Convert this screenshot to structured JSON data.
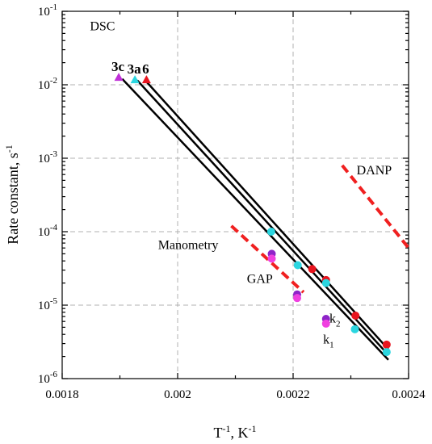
{
  "chart_data": {
    "type": "scatter",
    "xlabel": "T",
    "xlabel_sup": "-1",
    "xlabel_unit": ", K",
    "xlabel_unit_sup": "-1",
    "ylabel": "Rate constant, s",
    "ylabel_sup": "-1",
    "xlim": [
      0.0018,
      0.0024
    ],
    "ylim": [
      1e-06,
      0.1
    ],
    "yscale": "log",
    "grid": true,
    "x_ticks": [
      {
        "v": 0.0018,
        "label": "0.0018"
      },
      {
        "v": 0.002,
        "label": "0.002"
      },
      {
        "v": 0.0022,
        "label": "0.0022"
      },
      {
        "v": 0.0024,
        "label": "0.0024"
      }
    ],
    "y_ticks": [
      {
        "v": 1e-06,
        "base": "10",
        "exp": "-6"
      },
      {
        "v": 1e-05,
        "base": "10",
        "exp": "-5"
      },
      {
        "v": 0.0001,
        "base": "10",
        "exp": "-4"
      },
      {
        "v": 0.001,
        "base": "10",
        "exp": "-3"
      },
      {
        "v": 0.01,
        "base": "10",
        "exp": "-2"
      },
      {
        "v": 0.1,
        "base": "10",
        "exp": "-1"
      }
    ],
    "point_series": [
      {
        "color": "#e8141e",
        "points": [
          [
            0.002233,
            3.1e-05
          ],
          [
            0.002257,
            2.2e-05
          ],
          [
            0.002308,
            7.2e-06
          ],
          [
            0.002362,
            2.9e-06
          ]
        ]
      },
      {
        "color": "#2bd6e0",
        "points": [
          [
            0.002162,
            0.0001
          ],
          [
            0.002208,
            3.5e-05
          ],
          [
            0.002257,
            2e-05
          ],
          [
            0.002307,
            4.7e-06
          ],
          [
            0.002362,
            2.3e-06
          ]
        ]
      },
      {
        "color": "#8e24c8",
        "points": [
          [
            0.002163,
            5e-05
          ],
          [
            0.002207,
            1.4e-05
          ],
          [
            0.002257,
            6.5e-06
          ]
        ]
      },
      {
        "color": "#f040e0",
        "points": [
          [
            0.002163,
            4.3e-05
          ],
          [
            0.002207,
            1.25e-05
          ],
          [
            0.002257,
            5.6e-06
          ]
        ]
      }
    ],
    "dsc_markers": [
      {
        "label": "3c",
        "color": "#c030d8",
        "x": 0.001898,
        "y": 0.0125
      },
      {
        "label": "3a",
        "color": "#2bd6e0",
        "x": 0.001926,
        "y": 0.0116
      },
      {
        "label": "6",
        "color": "#e8141e",
        "x": 0.001946,
        "y": 0.0116
      }
    ],
    "fit_lines": [
      {
        "color": "#000000",
        "from": [
          0.001904,
          0.012
        ],
        "to": [
          0.002365,
          1.8e-06
        ]
      },
      {
        "color": "#000000",
        "from": [
          0.00193,
          0.0115
        ],
        "to": [
          0.002365,
          2.1e-06
        ]
      },
      {
        "color": "#000000",
        "from": [
          0.001946,
          0.011
        ],
        "to": [
          0.002365,
          2.5e-06
        ]
      }
    ],
    "dashed_lines": [
      {
        "color": "#f02020",
        "from": [
          0.002093,
          0.00012
        ],
        "to": [
          0.002218,
          1.5e-05
        ]
      },
      {
        "color": "#f02020",
        "from": [
          0.002285,
          0.0008
        ],
        "to": [
          0.0024,
          6e-05
        ]
      }
    ],
    "annotations": [
      {
        "text": "DSC",
        "x": 0.001848,
        "y": 0.055
      },
      {
        "text": "DANP",
        "x": 0.00231,
        "y": 0.0006
      },
      {
        "text": "Manometry",
        "x": 0.001966,
        "y": 5.8e-05
      },
      {
        "text": "GAP",
        "x": 0.00212,
        "y": 2e-05
      },
      {
        "text": "k",
        "sub": "2",
        "x": 0.002263,
        "y": 5.8e-06
      },
      {
        "text": "k",
        "sub": "1",
        "x": 0.002252,
        "y": 3e-06
      }
    ]
  }
}
